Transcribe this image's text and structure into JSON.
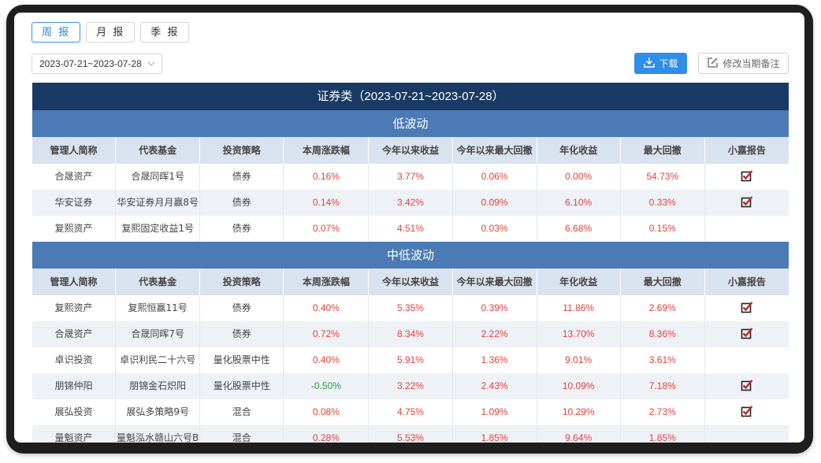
{
  "tabs": [
    {
      "label": "周 报",
      "active": true
    },
    {
      "label": "月 报",
      "active": false
    },
    {
      "label": "季 报",
      "active": false
    }
  ],
  "date_range": {
    "value": "2023-07-21~2023-07-28",
    "icon": "chevron-down-icon"
  },
  "toolbar": {
    "download_label": "下载",
    "download_icon": "download-icon",
    "edit_note_label": "修改当期备注",
    "edit_note_icon": "edit-icon",
    "accent_color": "#2f8ee8"
  },
  "table": {
    "title": "证券类（2023-07-21~2023-07-28）",
    "columns": [
      "管理人简称",
      "代表基金",
      "投资策略",
      "本周涨跌幅",
      "今年以来收益",
      "今年以来最大回撤",
      "年化收益",
      "最大回撤",
      "小嘉报告"
    ],
    "groups": [
      {
        "name": "低波动",
        "rows": [
          {
            "manager": "合晟资产",
            "fund": "合晟同晖1号",
            "strategy": "债券",
            "week_change": "0.16%",
            "ytd_return": "3.77%",
            "ytd_max_drawdown": "0.06%",
            "annualized": "0.00%",
            "max_drawdown": "54.73%",
            "report": true
          },
          {
            "manager": "华安证券",
            "fund": "华安证券月月赢8号",
            "strategy": "债券",
            "week_change": "0.14%",
            "ytd_return": "3.42%",
            "ytd_max_drawdown": "0.09%",
            "annualized": "6.10%",
            "max_drawdown": "0.33%",
            "report": true
          },
          {
            "manager": "复熙资产",
            "fund": "复熙固定收益1号",
            "strategy": "债券",
            "week_change": "0.07%",
            "ytd_return": "4.51%",
            "ytd_max_drawdown": "0.03%",
            "annualized": "6.68%",
            "max_drawdown": "0.15%",
            "report": false
          }
        ]
      },
      {
        "name": "中低波动",
        "rows": [
          {
            "manager": "复熙资产",
            "fund": "复熙恒赢11号",
            "strategy": "债券",
            "week_change": "0.40%",
            "ytd_return": "5.35%",
            "ytd_max_drawdown": "0.39%",
            "annualized": "11.86%",
            "max_drawdown": "2.69%",
            "report": true
          },
          {
            "manager": "合晟资产",
            "fund": "合晟同晖7号",
            "strategy": "债券",
            "week_change": "0.72%",
            "ytd_return": "8.34%",
            "ytd_max_drawdown": "2.22%",
            "annualized": "13.70%",
            "max_drawdown": "8.36%",
            "report": true
          },
          {
            "manager": "卓识投资",
            "fund": "卓识利民二十六号",
            "strategy": "量化股票中性",
            "week_change": "0.40%",
            "ytd_return": "5.91%",
            "ytd_max_drawdown": "1.36%",
            "annualized": "9.01%",
            "max_drawdown": "3.61%",
            "report": false
          },
          {
            "manager": "朋锦仲阳",
            "fund": "朋锦金石炽阳",
            "strategy": "量化股票中性",
            "week_change": "-0.50%",
            "ytd_return": "3.22%",
            "ytd_max_drawdown": "2.43%",
            "annualized": "10.09%",
            "max_drawdown": "7.18%",
            "report": true
          },
          {
            "manager": "展弘投资",
            "fund": "展弘多策略9号",
            "strategy": "混合",
            "week_change": "0.08%",
            "ytd_return": "4.75%",
            "ytd_max_drawdown": "1.09%",
            "annualized": "10.29%",
            "max_drawdown": "2.73%",
            "report": true
          },
          {
            "manager": "量魁资产",
            "fund": "量魁泓水赣山六号B",
            "strategy": "混合",
            "week_change": "0.28%",
            "ytd_return": "5.53%",
            "ytd_max_drawdown": "1.85%",
            "annualized": "9.64%",
            "max_drawdown": "1.85%",
            "report": false
          }
        ]
      }
    ]
  },
  "colors": {
    "title_bar": "#1a3a66",
    "group_bar": "#4a7bb5",
    "header_row": "#d9e3ef",
    "positive": "#e3403a",
    "negative": "#2e9a3c",
    "checkbox": "#c0282a"
  }
}
